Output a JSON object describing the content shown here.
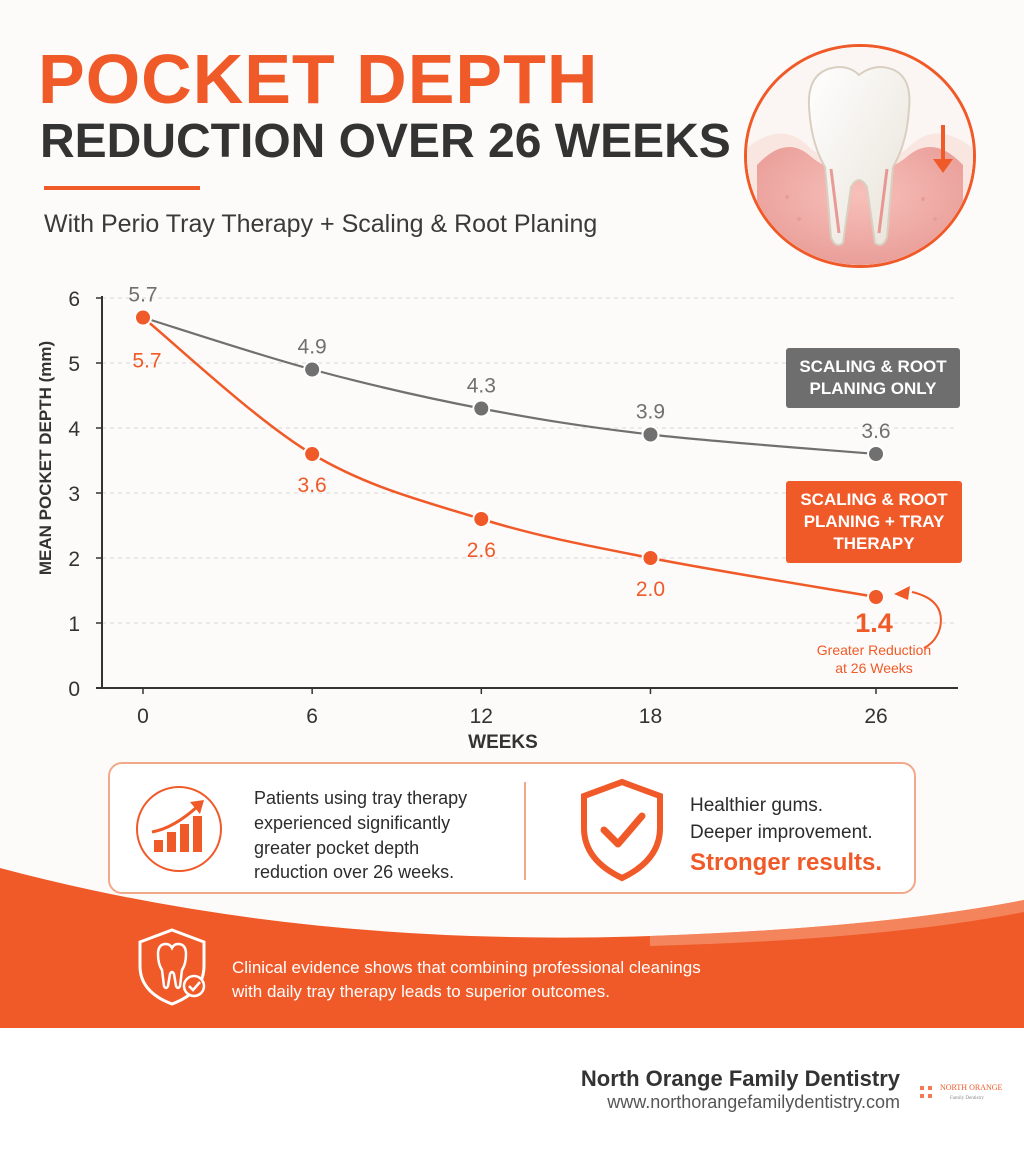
{
  "header": {
    "title_line1": "POCKET DEPTH",
    "title_line2": "REDUCTION OVER 26 WEEKS",
    "subtitle": "With Perio Tray Therapy + Scaling & Root Planing"
  },
  "icons": {
    "hero": "tooth-gum-pocket-icon",
    "trend": "bar-chart-trend-up-icon",
    "shield": "shield-check-icon",
    "band": "tooth-shield-check-icon",
    "logo": "brand-logo-icon"
  },
  "colors": {
    "accent": "#f05a28",
    "srp_only_series": "#707070",
    "tray_series": "#f05a28",
    "text_dark": "#333333"
  },
  "chart_data": {
    "type": "line",
    "ylabel": "MEAN POCKET DEPTH (mm)",
    "xlabel": "WEEKS",
    "x": [
      0,
      6,
      12,
      18,
      26
    ],
    "x_tick_labels": [
      "0",
      "6",
      "12",
      "18",
      "26"
    ],
    "ylim": [
      0,
      6
    ],
    "y_ticks": [
      "0",
      "1",
      "2",
      "3",
      "4",
      "5",
      "6"
    ],
    "grid": "horizontal dashed",
    "series": [
      {
        "name": "SCALING & ROOT PLANING ONLY",
        "color": "#707070",
        "values": [
          5.7,
          4.9,
          4.3,
          3.9,
          3.6
        ],
        "labels": [
          "5.7",
          "4.9",
          "4.3",
          "3.9",
          "3.6"
        ],
        "label_position": "above"
      },
      {
        "name": "SCALING & ROOT PLANING + TRAY THERAPY",
        "color": "#f05a28",
        "values": [
          5.7,
          3.6,
          2.6,
          2.0,
          1.4
        ],
        "labels": [
          "5.7",
          "3.6",
          "2.6",
          "2.0",
          "1.4"
        ],
        "label_position": "below"
      }
    ],
    "legend": {
      "gray_line1": "SCALING & ROOT",
      "gray_line2": "PLANING ONLY",
      "orange_line1": "SCALING & ROOT",
      "orange_line2": "PLANING + TRAY",
      "orange_line3": "THERAPY"
    },
    "callout": {
      "value": "1.4",
      "text_line1": "Greater Reduction",
      "text_line2": "at 26 Weeks"
    }
  },
  "info_card": {
    "left_line1": "Patients using tray therapy",
    "left_line2": "experienced significantly",
    "left_line3": "greater pocket depth",
    "left_line4": "reduction over 26 weeks.",
    "right_line1": "Healthier gums.",
    "right_line2": "Deeper improvement.",
    "right_line3": "Stronger results."
  },
  "band": {
    "line1": "Clinical evidence shows that combining professional cleanings",
    "line2": "with daily tray therapy leads to superior outcomes."
  },
  "footer": {
    "brand_name": "North Orange Family Dentistry",
    "brand_url": "www.northorangefamilydentistry.com",
    "logo_text_line1": "NORTH ORANGE",
    "logo_text_line2": "Family Dentistry"
  }
}
